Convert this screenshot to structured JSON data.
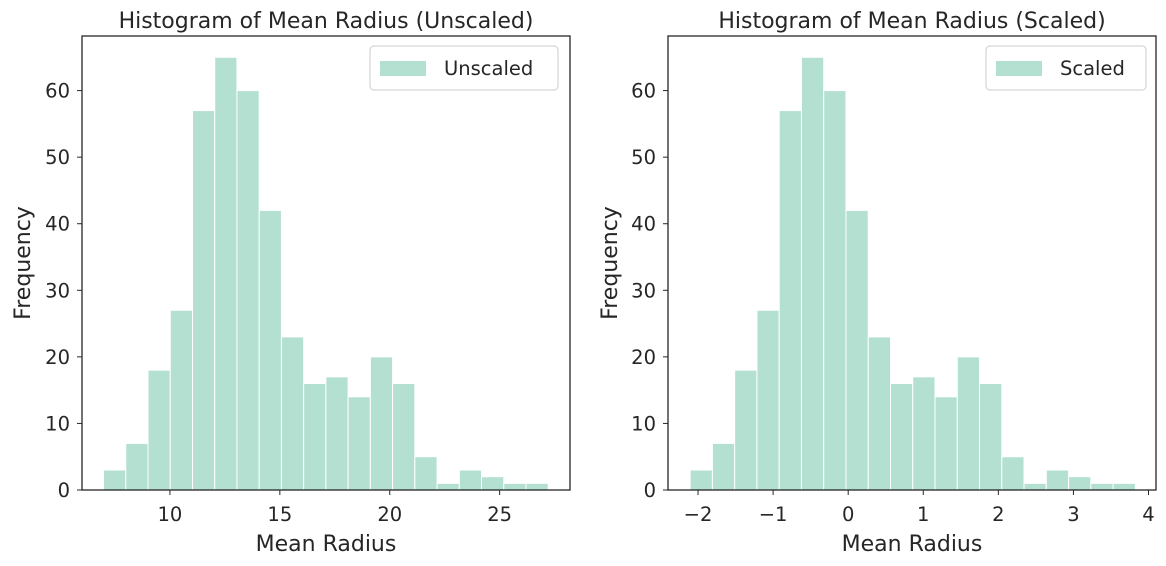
{
  "chart_data": [
    {
      "type": "bar",
      "title": "Histogram of Mean Radius (Unscaled)",
      "xlabel": "Mean Radius",
      "ylabel": "Frequency",
      "xlim": [
        6.0,
        28.2
      ],
      "ylim": [
        0,
        68.2
      ],
      "xticks": [
        10,
        15,
        20,
        25
      ],
      "yticks": [
        0,
        10,
        20,
        30,
        40,
        50,
        60
      ],
      "bin_start": 6.98,
      "bin_width": 1.0115,
      "values": [
        3,
        7,
        18,
        27,
        57,
        65,
        60,
        42,
        23,
        16,
        17,
        14,
        20,
        16,
        5,
        1,
        3,
        2,
        1,
        1
      ],
      "legend": "Unscaled",
      "legend_position": "top-right",
      "grid": false,
      "color": "#b3e0d1",
      "edge_color": "#ffffff"
    },
    {
      "type": "bar",
      "title": "Histogram of Mean Radius (Scaled)",
      "xlabel": "Mean Radius",
      "ylabel": "Frequency",
      "xlim": [
        -2.4,
        4.1
      ],
      "ylim": [
        0,
        68.2
      ],
      "xticks": [
        -2,
        -1,
        0,
        1,
        2,
        3,
        4
      ],
      "xtick_labels": [
        "−2",
        "−1",
        "0",
        "1",
        "2",
        "3",
        "4"
      ],
      "yticks": [
        0,
        10,
        20,
        30,
        40,
        50,
        60
      ],
      "bin_start": -2.105,
      "bin_width": 0.2965,
      "values": [
        3,
        7,
        18,
        27,
        57,
        65,
        60,
        42,
        23,
        16,
        17,
        14,
        20,
        16,
        5,
        1,
        3,
        2,
        1,
        1
      ],
      "legend": "Scaled",
      "legend_position": "top-right",
      "grid": false,
      "color": "#b3e0d1",
      "edge_color": "#ffffff"
    }
  ]
}
